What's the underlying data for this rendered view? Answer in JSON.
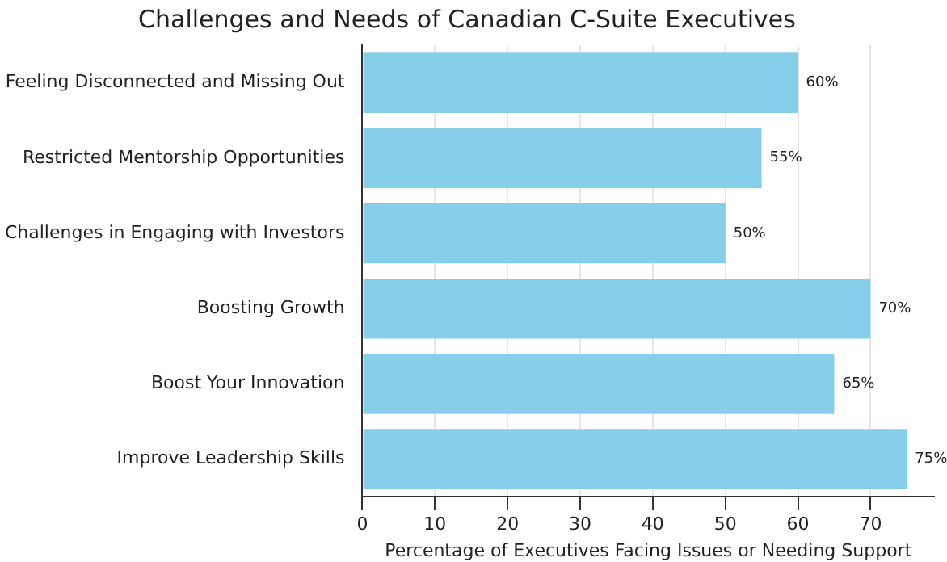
{
  "chart_data": {
    "type": "bar",
    "orientation": "horizontal",
    "title": "Challenges and Needs of Canadian C-Suite Executives",
    "xlabel": "Percentage of Executives Facing Issues or Needing Support",
    "categories": [
      "Feeling Disconnected and Missing Out",
      "Restricted Mentorship Opportunities",
      "Challenges in Engaging with Investors",
      "Boosting Growth",
      "Boost Your Innovation",
      "Improve Leadership Skills"
    ],
    "values": [
      60,
      55,
      50,
      70,
      65,
      75
    ],
    "value_labels": [
      "60%",
      "55%",
      "50%",
      "70%",
      "65%",
      "75%"
    ],
    "color": "#87ceeb",
    "xlim": [
      0,
      78.75
    ],
    "xticks": [
      0,
      10,
      20,
      30,
      40,
      50,
      60,
      70
    ],
    "grid": "x",
    "legend": false
  }
}
